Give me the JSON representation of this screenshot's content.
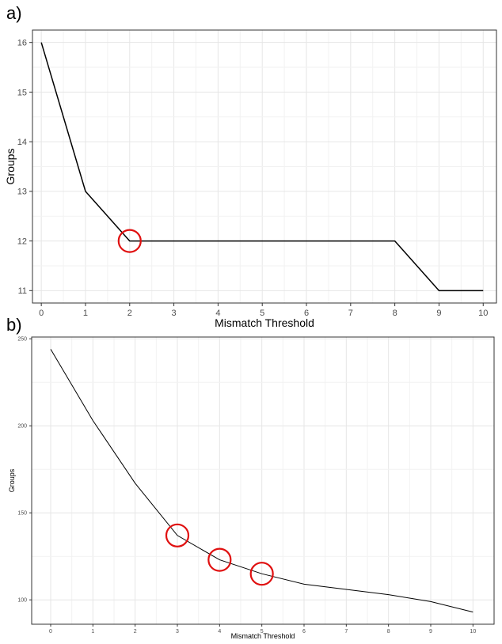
{
  "panels": [
    {
      "label": "a)"
    },
    {
      "label": "b)"
    }
  ],
  "chart_data": [
    {
      "type": "line",
      "title": "",
      "xlabel": "Mismatch Threshold",
      "ylabel": "Groups",
      "x": [
        0,
        1,
        2,
        3,
        4,
        5,
        6,
        7,
        8,
        9,
        10
      ],
      "y": [
        16,
        13,
        12,
        12,
        12,
        12,
        12,
        12,
        12,
        11,
        11
      ],
      "xlim": [
        -0.2,
        10.3
      ],
      "ylim": [
        10.75,
        16.25
      ],
      "xticks": [
        0,
        1,
        2,
        3,
        4,
        5,
        6,
        7,
        8,
        9,
        10
      ],
      "yticks": [
        11,
        12,
        13,
        14,
        15,
        16
      ],
      "grid": true,
      "line_color": "#000000",
      "highlighted_x": [
        2
      ],
      "highlight_color": "#e01010"
    },
    {
      "type": "line",
      "title": "",
      "xlabel": "Mismatch Threshold",
      "ylabel": "Groups",
      "x": [
        0,
        1,
        2,
        3,
        4,
        5,
        6,
        7,
        8,
        9,
        10
      ],
      "y": [
        244,
        203,
        167,
        137,
        123,
        115,
        109,
        106,
        103,
        99,
        93
      ],
      "xlim": [
        -0.45,
        10.5
      ],
      "ylim": [
        86,
        251
      ],
      "xticks": [
        0,
        1,
        2,
        3,
        4,
        5,
        6,
        7,
        8,
        9,
        10
      ],
      "yticks": [
        100,
        150,
        200,
        250
      ],
      "grid": true,
      "line_color": "#000000",
      "highlighted_x": [
        3,
        4,
        5
      ],
      "highlight_color": "#e01010"
    }
  ]
}
